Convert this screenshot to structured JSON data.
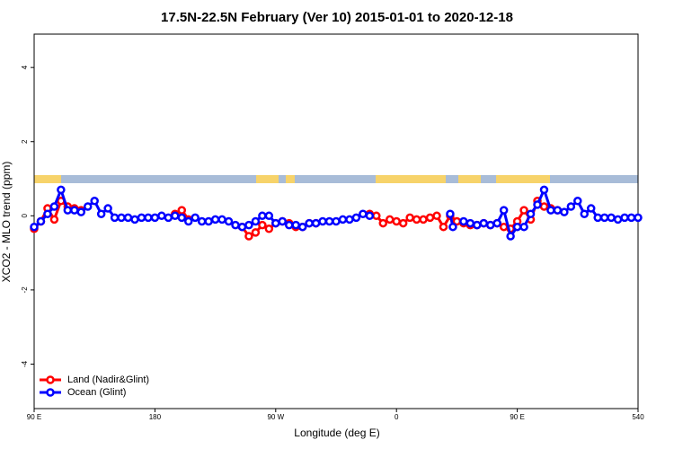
{
  "chart_data": {
    "type": "line",
    "title": "17.5N-22.5N February (Ver 10)   2015-01-01 to 2020-12-18",
    "x_label": "Longitude (deg E)",
    "y_label": "XCO2 - MLO trend (ppm)",
    "xlim": [
      90,
      540
    ],
    "ylim": [
      -5.2,
      4.9
    ],
    "xticks": [
      {
        "value": 90,
        "label": "90 E"
      },
      180,
      {
        "value": 270,
        "label": "90 W"
      },
      {
        "value": 360,
        "label": "0"
      },
      {
        "value": 450,
        "label": "90 E"
      },
      540
    ],
    "yticks": [
      -4,
      -2,
      0,
      2,
      4
    ],
    "legend": "bottom-left",
    "series": [
      {
        "name": "Land (Nadir&Glint)",
        "color": "#ff0000",
        "x": [
          90,
          95,
          100,
          105,
          110,
          115,
          120,
          125,
          null,
          195,
          200,
          205,
          null,
          245,
          250,
          255,
          260,
          265,
          270,
          275,
          280,
          285,
          290,
          295,
          300,
          null,
          340,
          345,
          350,
          355,
          360,
          365,
          370,
          375,
          380,
          385,
          390,
          395,
          400,
          405,
          410,
          415,
          420,
          425,
          430,
          435,
          440,
          445,
          450,
          455,
          460,
          465,
          470,
          475,
          480
        ],
        "values": [
          -0.35,
          -0.15,
          0.2,
          -0.1,
          0.4,
          0.25,
          0.2,
          0.15,
          null,
          0.05,
          0.15,
          -0.1,
          null,
          -0.3,
          -0.55,
          -0.45,
          -0.25,
          -0.35,
          -0.2,
          -0.15,
          -0.2,
          -0.3,
          -0.3,
          -0.2,
          -0.2,
          null,
          0.05,
          0,
          -0.2,
          -0.1,
          -0.15,
          -0.2,
          -0.05,
          -0.1,
          -0.1,
          -0.05,
          0,
          -0.3,
          0,
          -0.15,
          -0.2,
          -0.25,
          -0.25,
          -0.2,
          -0.25,
          -0.2,
          -0.3,
          -0.35,
          -0.15,
          0.15,
          -0.1,
          0.4,
          0.25,
          0.2,
          0.15
        ]
      },
      {
        "name": "Ocean (Glint)",
        "color": "#0000ff",
        "x": [
          90,
          95,
          100,
          105,
          110,
          115,
          120,
          125,
          130,
          135,
          140,
          145,
          150,
          155,
          160,
          165,
          170,
          175,
          180,
          185,
          190,
          195,
          200,
          205,
          210,
          215,
          220,
          225,
          230,
          235,
          240,
          245,
          250,
          255,
          260,
          265,
          270,
          275,
          280,
          285,
          290,
          295,
          300,
          305,
          310,
          315,
          320,
          325,
          330,
          335,
          340,
          null,
          400,
          402,
          null,
          410,
          415,
          420,
          425,
          430,
          435,
          440,
          445,
          450,
          455,
          460,
          465,
          470,
          475,
          480,
          485,
          490,
          495,
          500,
          505,
          510,
          515,
          520,
          525,
          530,
          535,
          540
        ],
        "values": [
          -0.3,
          -0.15,
          0.05,
          0.25,
          0.7,
          0.15,
          0.15,
          0.1,
          0.25,
          0.4,
          0.05,
          0.2,
          -0.05,
          -0.05,
          -0.05,
          -0.1,
          -0.05,
          -0.05,
          -0.05,
          0,
          -0.05,
          0,
          -0.05,
          -0.15,
          -0.05,
          -0.15,
          -0.15,
          -0.1,
          -0.1,
          -0.15,
          -0.25,
          -0.3,
          -0.25,
          -0.15,
          0,
          0,
          -0.2,
          -0.15,
          -0.25,
          -0.25,
          -0.3,
          -0.2,
          -0.2,
          -0.15,
          -0.15,
          -0.15,
          -0.1,
          -0.1,
          -0.05,
          0.05,
          0,
          null,
          0.05,
          -0.3,
          null,
          -0.15,
          -0.2,
          -0.25,
          -0.2,
          -0.25,
          -0.2,
          0.15,
          -0.55,
          -0.3,
          -0.3,
          0.05,
          0.3,
          0.7,
          0.15,
          0.15,
          0.1,
          0.25,
          0.4,
          0.05,
          0.2,
          -0.05,
          -0.05,
          -0.05,
          -0.1,
          -0.05,
          -0.05,
          -0.05
        ]
      }
    ]
  }
}
